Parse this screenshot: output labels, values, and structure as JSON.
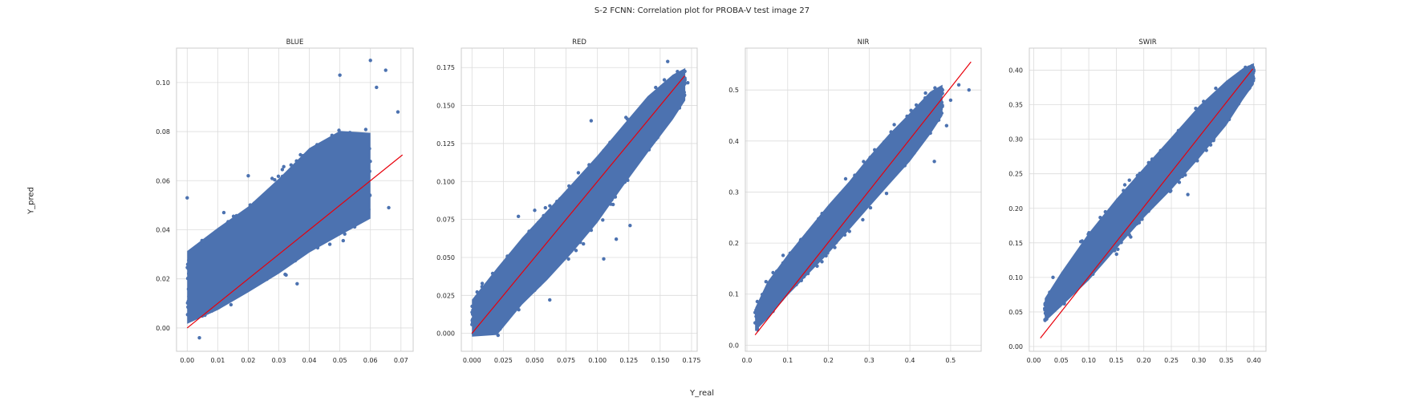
{
  "figure": {
    "suptitle": "S-2 FCNN: Correlation plot for PROBA-V test image 27",
    "supxlabel": "Y_real",
    "supylabel": "Y_pred"
  },
  "colors": {
    "points": "#4c72b0",
    "fit_line": "#e8000b",
    "grid": "#dcdcdc",
    "spine": "#cccccc"
  },
  "chart_data": [
    {
      "type": "scatter",
      "title": "BLUE",
      "grid": true,
      "xlim": [
        -0.0035,
        0.074
      ],
      "ylim": [
        -0.0095,
        0.114
      ],
      "xticks": [
        0.0,
        0.01,
        0.02,
        0.03,
        0.04,
        0.05,
        0.06,
        0.07
      ],
      "xtick_labels": [
        "0.00",
        "0.01",
        "0.02",
        "0.03",
        "0.04",
        "0.05",
        "0.06",
        "0.07"
      ],
      "yticks": [
        0.0,
        0.02,
        0.04,
        0.06,
        0.08,
        0.1
      ],
      "ytick_labels": [
        "0.00",
        "0.02",
        "0.04",
        "0.06",
        "0.08",
        "0.10"
      ],
      "point_band": {
        "x": [
          0.0,
          0.01,
          0.02,
          0.03,
          0.04,
          0.05,
          0.06
        ],
        "y_low": [
          -0.003,
          0.002,
          0.009,
          0.016,
          0.024,
          0.031,
          0.039
        ],
        "y_high": [
          0.036,
          0.046,
          0.055,
          0.067,
          0.08,
          0.087,
          0.085
        ]
      },
      "outliers": [
        [
          0.0,
          0.053
        ],
        [
          0.05,
          0.103
        ],
        [
          0.06,
          0.109
        ],
        [
          0.062,
          0.098
        ],
        [
          0.065,
          0.105
        ],
        [
          0.069,
          0.088
        ],
        [
          0.066,
          0.049
        ],
        [
          0.055,
          0.052
        ],
        [
          0.036,
          0.018
        ],
        [
          0.004,
          -0.004
        ],
        [
          0.02,
          0.062
        ],
        [
          0.012,
          0.047
        ]
      ],
      "fit_line": [
        [
          0.0,
          0.0
        ],
        [
          0.0705,
          0.0705
        ]
      ]
    },
    {
      "type": "scatter",
      "title": "RED",
      "grid": true,
      "xlim": [
        -0.0085,
        0.1795
      ],
      "ylim": [
        -0.0118,
        0.1878
      ],
      "xticks": [
        0.0,
        0.025,
        0.05,
        0.075,
        0.1,
        0.125,
        0.15,
        0.175
      ],
      "xtick_labels": [
        "0.000",
        "0.025",
        "0.050",
        "0.075",
        "0.100",
        "0.125",
        "0.150",
        "0.175"
      ],
      "yticks": [
        0.0,
        0.025,
        0.05,
        0.075,
        0.1,
        0.125,
        0.15,
        0.175
      ],
      "ytick_labels": [
        "0.000",
        "0.025",
        "0.050",
        "0.075",
        "0.100",
        "0.125",
        "0.150",
        "0.175"
      ],
      "point_band": {
        "x": [
          0.0,
          0.02,
          0.04,
          0.06,
          0.08,
          0.1,
          0.12,
          0.14,
          0.16,
          0.17
        ],
        "y_low": [
          -0.006,
          -0.008,
          0.012,
          0.028,
          0.046,
          0.066,
          0.09,
          0.113,
          0.136,
          0.15
        ],
        "y_high": [
          0.026,
          0.05,
          0.07,
          0.088,
          0.106,
          0.124,
          0.143,
          0.162,
          0.175,
          0.178
        ]
      },
      "outliers": [
        [
          0.037,
          0.077
        ],
        [
          0.05,
          0.081
        ],
        [
          0.062,
          0.022
        ],
        [
          0.105,
          0.049
        ],
        [
          0.115,
          0.062
        ],
        [
          0.126,
          0.071
        ],
        [
          0.172,
          0.165
        ],
        [
          0.095,
          0.14
        ],
        [
          0.156,
          0.179
        ]
      ],
      "fit_line": [
        [
          0.0,
          0.0
        ],
        [
          0.1695,
          0.1695
        ]
      ]
    },
    {
      "type": "scatter",
      "title": "NIR",
      "grid": true,
      "xlim": [
        -0.004,
        0.575
      ],
      "ylim": [
        -0.012,
        0.582
      ],
      "xticks": [
        0.0,
        0.1,
        0.2,
        0.3,
        0.4,
        0.5
      ],
      "xtick_labels": [
        "0.0",
        "0.1",
        "0.2",
        "0.3",
        "0.4",
        "0.5"
      ],
      "yticks": [
        0.0,
        0.1,
        0.2,
        0.3,
        0.4,
        0.5
      ],
      "ytick_labels": [
        "0.0",
        "0.1",
        "0.2",
        "0.3",
        "0.4",
        "0.5"
      ],
      "point_band": {
        "x": [
          0.02,
          0.05,
          0.1,
          0.15,
          0.2,
          0.25,
          0.3,
          0.35,
          0.4,
          0.45,
          0.48
        ],
        "y_low": [
          0.02,
          0.04,
          0.085,
          0.125,
          0.165,
          0.21,
          0.255,
          0.3,
          0.345,
          0.4,
          0.44
        ],
        "y_high": [
          0.08,
          0.135,
          0.19,
          0.24,
          0.29,
          0.335,
          0.385,
          0.43,
          0.47,
          0.51,
          0.52
        ]
      },
      "outliers": [
        [
          0.48,
          0.5
        ],
        [
          0.5,
          0.48
        ],
        [
          0.49,
          0.43
        ],
        [
          0.545,
          0.5
        ],
        [
          0.52,
          0.51
        ],
        [
          0.46,
          0.36
        ]
      ],
      "fit_line": [
        [
          0.02,
          0.02
        ],
        [
          0.55,
          0.555
        ]
      ]
    },
    {
      "type": "scatter",
      "title": "SWIR",
      "grid": true,
      "xlim": [
        -0.008,
        0.422
      ],
      "ylim": [
        -0.007,
        0.432
      ],
      "xticks": [
        0.0,
        0.05,
        0.1,
        0.15,
        0.2,
        0.25,
        0.3,
        0.35,
        0.4
      ],
      "xtick_labels": [
        "0.00",
        "0.05",
        "0.10",
        "0.15",
        "0.20",
        "0.25",
        "0.30",
        "0.35",
        "0.40"
      ],
      "yticks": [
        0.0,
        0.05,
        0.1,
        0.15,
        0.2,
        0.25,
        0.3,
        0.35,
        0.4
      ],
      "ytick_labels": [
        "0.00",
        "0.05",
        "0.10",
        "0.15",
        "0.20",
        "0.25",
        "0.30",
        "0.35",
        "0.40"
      ],
      "point_band": {
        "x": [
          0.02,
          0.05,
          0.1,
          0.15,
          0.2,
          0.25,
          0.3,
          0.35,
          0.38,
          0.4
        ],
        "y_low": [
          0.03,
          0.05,
          0.085,
          0.13,
          0.175,
          0.215,
          0.26,
          0.31,
          0.35,
          0.375
        ],
        "y_high": [
          0.075,
          0.115,
          0.175,
          0.225,
          0.27,
          0.315,
          0.36,
          0.395,
          0.41,
          0.415
        ]
      },
      "outliers": [
        [
          0.035,
          0.1
        ],
        [
          0.28,
          0.22
        ]
      ],
      "fit_line": [
        [
          0.012,
          0.012
        ],
        [
          0.398,
          0.402
        ]
      ]
    }
  ]
}
